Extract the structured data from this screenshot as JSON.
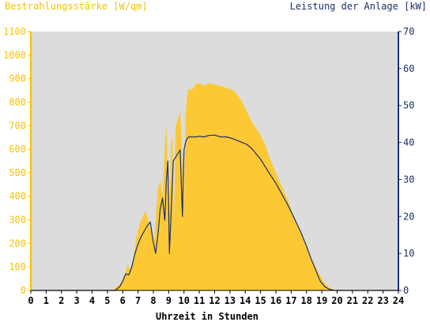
{
  "chart_data": {
    "type": "area",
    "left_axis_label": "Bestrahlungsstärke [W/qm]",
    "right_axis_label": "Leistung der Anlage [kW]",
    "xlabel": "Uhrzeit in Stunden",
    "xlim": [
      0,
      24
    ],
    "x_ticks": [
      "0",
      "1",
      "2",
      "3",
      "4",
      "5",
      "6",
      "7",
      "8",
      "9",
      "10",
      "11",
      "12",
      "13",
      "14",
      "15",
      "16",
      "17",
      "18",
      "19",
      "20",
      "21",
      "22",
      "23",
      "24"
    ],
    "left_ylim": [
      0,
      1100
    ],
    "left_ticks": [
      "0",
      "100",
      "200",
      "300",
      "400",
      "500",
      "600",
      "700",
      "800",
      "900",
      "1000",
      "1100"
    ],
    "right_ylim": [
      0,
      70
    ],
    "right_ticks": [
      "0",
      "10",
      "20",
      "30",
      "40",
      "50",
      "60",
      "70"
    ],
    "grid": false,
    "series": [
      {
        "axis": "left",
        "style": "area",
        "color": "#fcc935",
        "x": [
          0,
          5.3,
          5.8,
          6.1,
          6.3,
          6.5,
          6.7,
          6.9,
          7.1,
          7.3,
          7.5,
          7.7,
          7.9,
          8.05,
          8.15,
          8.3,
          8.45,
          8.6,
          8.75,
          8.85,
          8.95,
          9.05,
          9.15,
          9.25,
          9.35,
          9.45,
          9.6,
          9.75,
          9.9,
          10.0,
          10.1,
          10.2,
          10.3,
          10.45,
          10.6,
          10.8,
          11.0,
          11.3,
          11.6,
          12.0,
          12.4,
          12.8,
          13.2,
          13.5,
          13.8,
          14.1,
          14.4,
          14.7,
          15.0,
          15.3,
          15.6,
          16.0,
          16.4,
          16.8,
          17.2,
          17.6,
          18.0,
          18.3,
          18.6,
          18.9,
          19.2,
          19.5,
          19.8,
          20.0,
          24
        ],
        "values": [
          0,
          0,
          25,
          60,
          110,
          90,
          140,
          230,
          280,
          310,
          340,
          290,
          240,
          210,
          300,
          430,
          470,
          400,
          610,
          700,
          500,
          330,
          620,
          660,
          280,
          700,
          730,
          760,
          560,
          360,
          750,
          820,
          860,
          850,
          860,
          880,
          880,
          870,
          880,
          875,
          870,
          860,
          850,
          830,
          800,
          760,
          720,
          690,
          660,
          620,
          560,
          500,
          440,
          380,
          310,
          250,
          190,
          140,
          100,
          60,
          30,
          12,
          3,
          0,
          0
        ]
      },
      {
        "axis": "right",
        "style": "line",
        "color": "#1c2f6b",
        "x": [
          0,
          5.5,
          5.8,
          6.0,
          6.2,
          6.4,
          6.6,
          6.8,
          7.0,
          7.2,
          7.4,
          7.6,
          7.8,
          8.0,
          8.15,
          8.3,
          8.45,
          8.6,
          8.75,
          8.85,
          8.95,
          9.05,
          9.15,
          9.3,
          9.45,
          9.6,
          9.75,
          9.9,
          10.0,
          10.1,
          10.2,
          10.3,
          10.45,
          10.6,
          10.8,
          11.0,
          11.3,
          11.6,
          12.0,
          12.4,
          12.8,
          13.2,
          13.5,
          13.8,
          14.1,
          14.4,
          14.7,
          15.0,
          15.3,
          15.6,
          16.0,
          16.4,
          16.8,
          17.2,
          17.6,
          18.0,
          18.3,
          18.6,
          18.9,
          19.2,
          19.5,
          19.8,
          20.0,
          24
        ],
        "values": [
          0,
          0,
          1,
          2.5,
          4.5,
          4.2,
          6.5,
          10,
          12.5,
          14.5,
          16,
          17.5,
          18.5,
          13,
          10,
          15,
          22,
          25,
          19,
          30,
          35,
          10,
          20,
          35,
          36,
          37,
          38,
          20,
          38,
          40,
          41,
          41.5,
          41.5,
          41.5,
          41.5,
          41.7,
          41.5,
          41.9,
          42,
          41.5,
          41.5,
          41,
          40.5,
          40,
          39.5,
          38.5,
          37,
          35.5,
          33.5,
          31.5,
          29,
          26,
          23,
          19.5,
          16,
          12,
          8.5,
          5.5,
          2.5,
          1,
          0.3,
          0,
          0,
          0
        ]
      }
    ]
  }
}
